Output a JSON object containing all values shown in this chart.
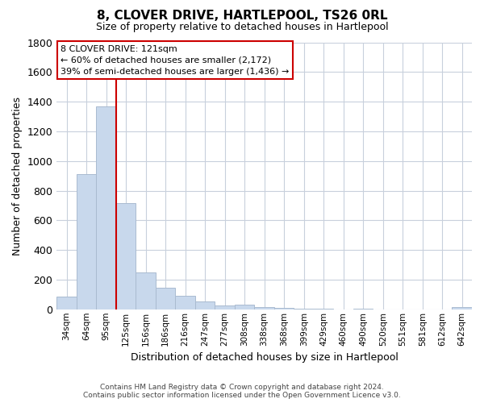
{
  "title": "8, CLOVER DRIVE, HARTLEPOOL, TS26 0RL",
  "subtitle": "Size of property relative to detached houses in Hartlepool",
  "xlabel": "Distribution of detached houses by size in Hartlepool",
  "ylabel": "Number of detached properties",
  "bar_labels": [
    "34sqm",
    "64sqm",
    "95sqm",
    "125sqm",
    "156sqm",
    "186sqm",
    "216sqm",
    "247sqm",
    "277sqm",
    "308sqm",
    "338sqm",
    "368sqm",
    "399sqm",
    "429sqm",
    "460sqm",
    "490sqm",
    "520sqm",
    "551sqm",
    "581sqm",
    "612sqm",
    "642sqm"
  ],
  "bar_values": [
    85,
    910,
    1370,
    715,
    248,
    143,
    90,
    53,
    27,
    30,
    15,
    10,
    5,
    5,
    0,
    5,
    0,
    0,
    0,
    0,
    15
  ],
  "bar_color": "#c8d8ec",
  "bar_edge_color": "#aabbd0",
  "ylim": [
    0,
    1800
  ],
  "yticks": [
    0,
    200,
    400,
    600,
    800,
    1000,
    1200,
    1400,
    1600,
    1800
  ],
  "property_line_color": "#cc0000",
  "annotation_title": "8 CLOVER DRIVE: 121sqm",
  "annotation_line1": "← 60% of detached houses are smaller (2,172)",
  "annotation_line2": "39% of semi-detached houses are larger (1,436) →",
  "footnote1": "Contains HM Land Registry data © Crown copyright and database right 2024.",
  "footnote2": "Contains public sector information licensed under the Open Government Licence v3.0.",
  "bg_color": "#ffffff",
  "grid_color": "#c8d0dc"
}
